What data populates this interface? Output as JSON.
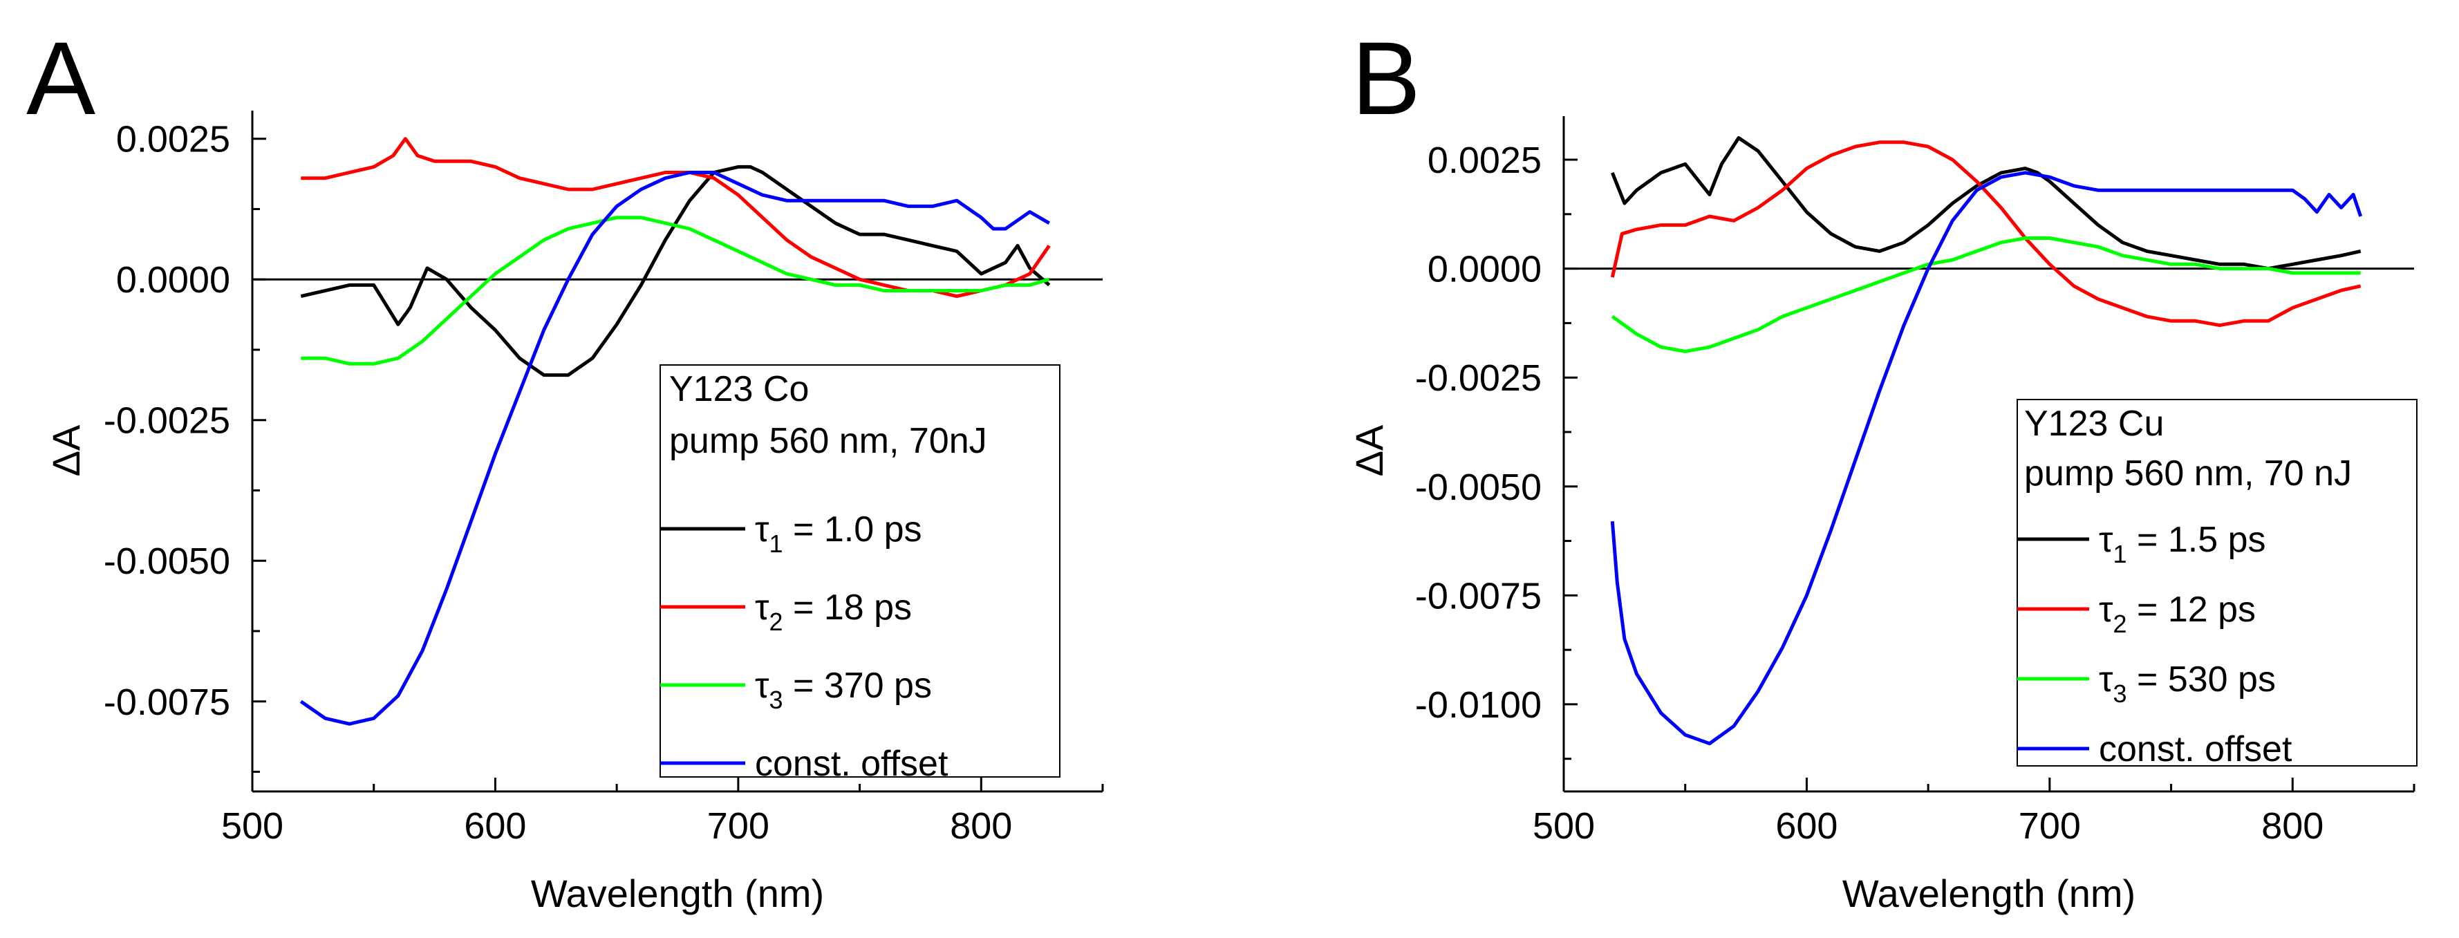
{
  "chart_data": [
    {
      "type": "line",
      "panel_label": "A",
      "xlabel": "Wavelength (nm)",
      "ylabel": "ΔA",
      "xlim": [
        500,
        850
      ],
      "ylim": [
        -0.0091,
        0.003
      ],
      "x_ticks": [
        500,
        600,
        700,
        800
      ],
      "x_tick_labels": [
        "500",
        "600",
        "700",
        "800"
      ],
      "y_ticks": [
        0.0025,
        0.0,
        -0.0025,
        -0.005,
        -0.0075
      ],
      "y_tick_labels": [
        "0.0025",
        "0.0000",
        "-0.0025",
        "-0.0050",
        "-0.0075"
      ],
      "zero_line": true,
      "legend_title": [
        "Y123 Co",
        "pump 560 nm, 70nJ"
      ],
      "series": [
        {
          "name": "τ1 = 1.0 ps",
          "tau_symbol": "τ",
          "tau_index": "1",
          "tau_value": " = 1.0 ps",
          "color": "#000000",
          "x": [
            520,
            540,
            550,
            560,
            565,
            572,
            580,
            590,
            600,
            610,
            620,
            630,
            640,
            650,
            660,
            670,
            680,
            690,
            700,
            705,
            710,
            720,
            730,
            740,
            750,
            760,
            770,
            780,
            790,
            795,
            800,
            810,
            815,
            820,
            828
          ],
          "y": [
            -0.0003,
            -0.0001,
            -0.0001,
            -0.0008,
            -0.0005,
            0.0002,
            0.0,
            -0.0005,
            -0.0009,
            -0.0014,
            -0.0017,
            -0.0017,
            -0.0014,
            -0.0008,
            -0.0001,
            0.0007,
            0.0014,
            0.0019,
            0.002,
            0.002,
            0.0019,
            0.0016,
            0.0013,
            0.001,
            0.0008,
            0.0008,
            0.0007,
            0.0006,
            0.0005,
            0.0003,
            0.0001,
            0.0003,
            0.0006,
            0.0002,
            -0.0001
          ]
        },
        {
          "name": "τ2 = 18 ps",
          "tau_symbol": "τ",
          "tau_index": "2",
          "tau_value": " = 18 ps",
          "color": "#ff0000",
          "x": [
            520,
            530,
            540,
            550,
            558,
            563,
            568,
            575,
            590,
            600,
            610,
            620,
            630,
            640,
            650,
            660,
            670,
            680,
            690,
            700,
            710,
            720,
            730,
            740,
            750,
            760,
            770,
            780,
            790,
            800,
            810,
            820,
            828
          ],
          "y": [
            0.0018,
            0.0018,
            0.0019,
            0.002,
            0.0022,
            0.0025,
            0.0022,
            0.0021,
            0.0021,
            0.002,
            0.0018,
            0.0017,
            0.0016,
            0.0016,
            0.0017,
            0.0018,
            0.0019,
            0.0019,
            0.0018,
            0.0015,
            0.0011,
            0.0007,
            0.0004,
            0.0002,
            0.0,
            -0.0001,
            -0.0002,
            -0.0002,
            -0.0003,
            -0.0002,
            -0.0001,
            0.0001,
            0.0006
          ]
        },
        {
          "name": "τ3 = 370 ps",
          "tau_symbol": "τ",
          "tau_index": "3",
          "tau_value": " = 370 ps",
          "color": "#00ff00",
          "x": [
            520,
            530,
            540,
            550,
            560,
            570,
            580,
            590,
            600,
            610,
            620,
            630,
            640,
            650,
            660,
            670,
            680,
            690,
            700,
            710,
            720,
            730,
            740,
            750,
            760,
            770,
            780,
            790,
            800,
            810,
            820,
            828
          ],
          "y": [
            -0.0014,
            -0.0014,
            -0.0015,
            -0.0015,
            -0.0014,
            -0.0011,
            -0.0007,
            -0.0003,
            0.0001,
            0.0004,
            0.0007,
            0.0009,
            0.001,
            0.0011,
            0.0011,
            0.001,
            0.0009,
            0.0007,
            0.0005,
            0.0003,
            0.0001,
            0.0,
            -0.0001,
            -0.0001,
            -0.0002,
            -0.0002,
            -0.0002,
            -0.0002,
            -0.0002,
            -0.0001,
            -0.0001,
            0.0
          ]
        },
        {
          "name": "const. offset",
          "tau_symbol": "",
          "tau_index": "",
          "tau_value": "const. offset",
          "color": "#0000ff",
          "x": [
            520,
            530,
            540,
            550,
            560,
            570,
            580,
            590,
            600,
            610,
            620,
            630,
            640,
            650,
            660,
            670,
            680,
            690,
            700,
            710,
            720,
            730,
            740,
            750,
            760,
            770,
            780,
            790,
            800,
            805,
            810,
            820,
            828
          ],
          "y": [
            -0.0075,
            -0.0078,
            -0.0079,
            -0.0078,
            -0.0074,
            -0.0066,
            -0.0055,
            -0.0043,
            -0.0031,
            -0.002,
            -0.0009,
            0.0,
            0.0008,
            0.0013,
            0.0016,
            0.0018,
            0.0019,
            0.0019,
            0.0017,
            0.0015,
            0.0014,
            0.0014,
            0.0014,
            0.0014,
            0.0014,
            0.0013,
            0.0013,
            0.0014,
            0.0011,
            0.0009,
            0.0009,
            0.0012,
            0.001
          ]
        }
      ]
    },
    {
      "type": "line",
      "panel_label": "B",
      "xlabel": "Wavelength (nm)",
      "ylabel": "ΔA",
      "xlim": [
        500,
        850
      ],
      "ylim": [
        -0.012,
        0.0035
      ],
      "x_ticks": [
        500,
        600,
        700,
        800
      ],
      "x_tick_labels": [
        "500",
        "600",
        "700",
        "800"
      ],
      "y_ticks": [
        0.0025,
        0.0,
        -0.0025,
        -0.005,
        -0.0075,
        -0.01
      ],
      "y_tick_labels": [
        "0.0025",
        "0.0000",
        "-0.0025",
        "-0.0050",
        "-0.0075",
        "-0.0100"
      ],
      "zero_line": true,
      "legend_title": [
        "Y123 Cu",
        "pump 560 nm, 70 nJ"
      ],
      "series": [
        {
          "name": "τ1 = 1.5 ps",
          "tau_symbol": "τ",
          "tau_index": "1",
          "tau_value": " = 1.5 ps",
          "color": "#000000",
          "x": [
            520,
            525,
            530,
            540,
            550,
            560,
            565,
            572,
            580,
            590,
            600,
            610,
            620,
            630,
            640,
            650,
            660,
            670,
            680,
            690,
            695,
            700,
            710,
            720,
            730,
            740,
            750,
            760,
            770,
            780,
            790,
            800,
            810,
            820,
            828
          ],
          "y": [
            0.0022,
            0.0015,
            0.0018,
            0.0022,
            0.0024,
            0.0017,
            0.0024,
            0.003,
            0.0027,
            0.002,
            0.0013,
            0.0008,
            0.0005,
            0.0004,
            0.0006,
            0.001,
            0.0015,
            0.0019,
            0.0022,
            0.0023,
            0.0022,
            0.002,
            0.0015,
            0.001,
            0.0006,
            0.0004,
            0.0003,
            0.0002,
            0.0001,
            0.0001,
            0.0,
            0.0001,
            0.0002,
            0.0003,
            0.0004
          ]
        },
        {
          "name": "τ2 = 12 ps",
          "tau_symbol": "τ",
          "tau_index": "2",
          "tau_value": " = 12 ps",
          "color": "#ff0000",
          "x": [
            520,
            524,
            530,
            540,
            550,
            560,
            570,
            580,
            590,
            600,
            610,
            620,
            630,
            640,
            650,
            660,
            670,
            680,
            690,
            700,
            710,
            720,
            730,
            740,
            750,
            760,
            770,
            780,
            790,
            800,
            810,
            820,
            828
          ],
          "y": [
            -0.0002,
            0.0008,
            0.0009,
            0.001,
            0.001,
            0.0012,
            0.0011,
            0.0014,
            0.0018,
            0.0023,
            0.0026,
            0.0028,
            0.0029,
            0.0029,
            0.0028,
            0.0025,
            0.002,
            0.0014,
            0.0007,
            0.0001,
            -0.0004,
            -0.0007,
            -0.0009,
            -0.0011,
            -0.0012,
            -0.0012,
            -0.0013,
            -0.0012,
            -0.0012,
            -0.0009,
            -0.0007,
            -0.0005,
            -0.0004
          ]
        },
        {
          "name": "τ3 = 530 ps",
          "tau_symbol": "τ",
          "tau_index": "3",
          "tau_value": " = 530 ps",
          "color": "#00ff00",
          "x": [
            520,
            530,
            540,
            550,
            560,
            570,
            580,
            590,
            600,
            610,
            620,
            630,
            640,
            650,
            660,
            670,
            680,
            690,
            700,
            710,
            720,
            730,
            740,
            750,
            760,
            770,
            780,
            790,
            800,
            810,
            820,
            828
          ],
          "y": [
            -0.0011,
            -0.0015,
            -0.0018,
            -0.0019,
            -0.0018,
            -0.0016,
            -0.0014,
            -0.0011,
            -0.0009,
            -0.0007,
            -0.0005,
            -0.0003,
            -0.0001,
            0.0001,
            0.0002,
            0.0004,
            0.0006,
            0.0007,
            0.0007,
            0.0006,
            0.0005,
            0.0003,
            0.0002,
            0.0001,
            0.0001,
            0.0,
            0.0,
            0.0,
            -0.0001,
            -0.0001,
            -0.0001,
            -0.0001
          ]
        },
        {
          "name": "const. offset",
          "tau_symbol": "",
          "tau_index": "",
          "tau_value": "const. offset",
          "color": "#0000ff",
          "x": [
            520,
            522,
            525,
            530,
            540,
            550,
            560,
            570,
            580,
            590,
            600,
            610,
            620,
            630,
            640,
            650,
            660,
            670,
            680,
            690,
            700,
            710,
            720,
            730,
            740,
            750,
            760,
            770,
            780,
            790,
            800,
            805,
            810,
            815,
            820,
            825,
            828
          ],
          "y": [
            -0.0058,
            -0.0072,
            -0.0085,
            -0.0093,
            -0.0102,
            -0.0107,
            -0.0109,
            -0.0105,
            -0.0097,
            -0.0087,
            -0.0075,
            -0.006,
            -0.0044,
            -0.0028,
            -0.0013,
            0.0,
            0.0011,
            0.0018,
            0.0021,
            0.0022,
            0.0021,
            0.0019,
            0.0018,
            0.0018,
            0.0018,
            0.0018,
            0.0018,
            0.0018,
            0.0018,
            0.0018,
            0.0018,
            0.0016,
            0.0013,
            0.0017,
            0.0014,
            0.0017,
            0.0012
          ]
        }
      ]
    }
  ]
}
